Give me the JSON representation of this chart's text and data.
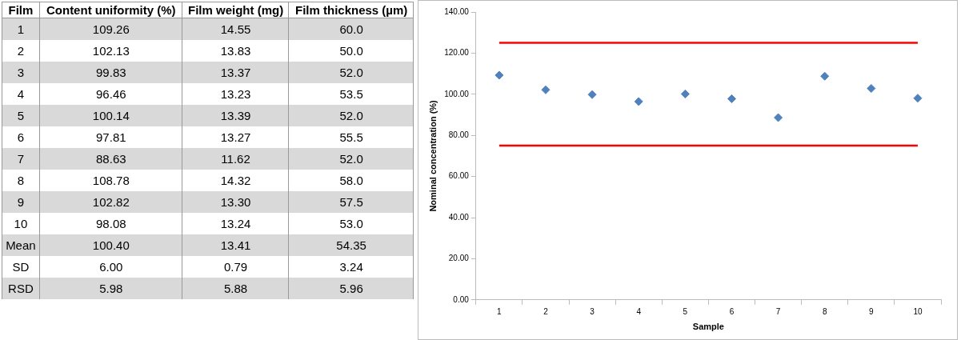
{
  "chart_data": [
    {
      "type": "heatmap",
      "ylabel": "Film",
      "categories": [
        "Content uniformity (%)",
        "Film weight (mg)",
        "Film thickness (µm)"
      ],
      "y_categories": [
        "1",
        "2",
        "3",
        "4",
        "5",
        "6",
        "7",
        "8",
        "9",
        "10",
        "Mean",
        "SD",
        "RSD"
      ],
      "cells": [
        [
          109.26,
          14.55,
          60.0
        ],
        [
          102.13,
          13.83,
          50.0
        ],
        [
          99.83,
          13.37,
          52.0
        ],
        [
          96.46,
          13.23,
          53.5
        ],
        [
          100.14,
          13.39,
          52.0
        ],
        [
          97.81,
          13.27,
          55.5
        ],
        [
          88.63,
          11.62,
          52.0
        ],
        [
          108.78,
          14.32,
          58.0
        ],
        [
          102.82,
          13.3,
          57.5
        ],
        [
          98.08,
          13.24,
          53.0
        ],
        [
          100.4,
          13.41,
          54.35
        ],
        [
          6.0,
          0.79,
          3.24
        ],
        [
          5.98,
          5.88,
          5.96
        ]
      ],
      "cell_labels": [
        [
          "109.26",
          "14.55",
          "60.0"
        ],
        [
          "102.13",
          "13.83",
          "50.0"
        ],
        [
          "99.83",
          "13.37",
          "52.0"
        ],
        [
          "96.46",
          "13.23",
          "53.5"
        ],
        [
          "100.14",
          "13.39",
          "52.0"
        ],
        [
          "97.81",
          "13.27",
          "55.5"
        ],
        [
          "88.63",
          "11.62",
          "52.0"
        ],
        [
          "108.78",
          "14.32",
          "58.0"
        ],
        [
          "102.82",
          "13.30",
          "57.5"
        ],
        [
          "98.08",
          "13.24",
          "53.0"
        ],
        [
          "100.40",
          "13.41",
          "54.35"
        ],
        [
          "6.00",
          "0.79",
          "3.24"
        ],
        [
          "5.98",
          "5.88",
          "5.96"
        ]
      ]
    },
    {
      "type": "scatter",
      "xlabel": "Sample",
      "ylabel": "Nominal concentration (%)",
      "categories": [
        "1",
        "2",
        "3",
        "4",
        "5",
        "6",
        "7",
        "8",
        "9",
        "10"
      ],
      "series": [
        {
          "color": "#4f81bd",
          "values": [
            109.26,
            102.13,
            99.83,
            96.46,
            100.14,
            97.81,
            88.63,
            108.78,
            102.82,
            98.08
          ]
        }
      ],
      "marker": "diamond",
      "ylim": [
        0,
        140
      ],
      "yticks": [
        {
          "value": 0,
          "label": "0.00"
        },
        {
          "value": 20,
          "label": "20.00"
        },
        {
          "value": 40,
          "label": "40.00"
        },
        {
          "value": 60,
          "label": "60.00"
        },
        {
          "value": 80,
          "label": "80.00"
        },
        {
          "value": 100,
          "label": "100.00"
        },
        {
          "value": 120,
          "label": "120.00"
        },
        {
          "value": 140,
          "label": "140.00"
        }
      ],
      "ref_lines": [
        {
          "axis": "y",
          "value": 125,
          "color": "#ff0000"
        },
        {
          "axis": "y",
          "value": 75,
          "color": "#ff0000"
        }
      ],
      "grid": false,
      "legend": false
    }
  ]
}
